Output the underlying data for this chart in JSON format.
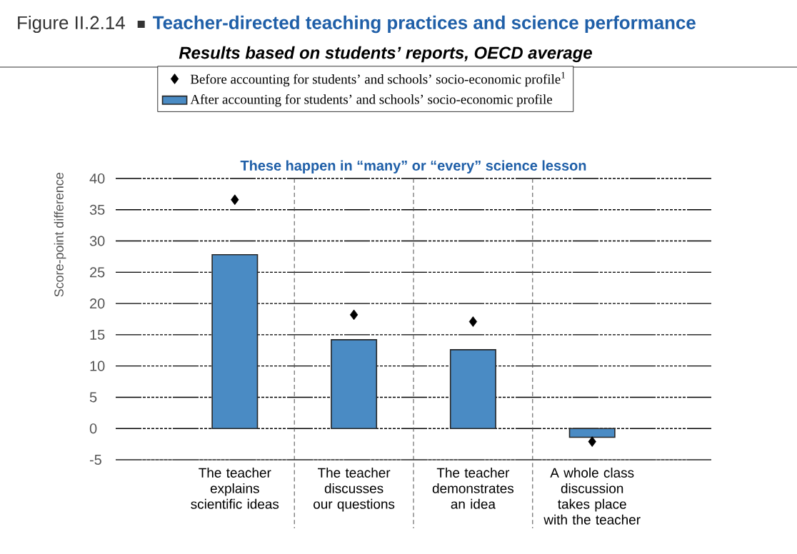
{
  "chart_data": {
    "type": "bar",
    "title": "Teacher-directed teaching practices and science performance",
    "subtitle": "Results based on students’ reports, OECD average",
    "ylabel": "Score-point difference",
    "annotations": [
      "Figure II.2.14",
      "These happen in “many” or “every” science lesson"
    ],
    "categories": [
      "The teacher explains scientific ideas",
      "The teacher discusses our questions",
      "The teacher demonstrates an idea",
      "A whole class discussion takes place with the teacher"
    ],
    "series": [
      {
        "name": "Before accounting for students’ and schools’ socio-economic profile$^{1}$",
        "type": "scatter",
        "color": "#000000",
        "marker": "diamond",
        "values": [
          36.6,
          18.2,
          17.1,
          -2.1
        ]
      },
      {
        "name": "After accounting for students’ and schools’ socio-economic profile",
        "color": "#4a8bc4",
        "values": [
          27.8,
          14.2,
          12.6,
          -1.4
        ]
      }
    ],
    "ylim": [
      -5,
      40
    ],
    "yticks": [
      -5,
      0,
      5,
      10,
      15,
      20,
      25,
      30,
      35,
      40
    ],
    "grid": "y",
    "legend": "top"
  }
}
